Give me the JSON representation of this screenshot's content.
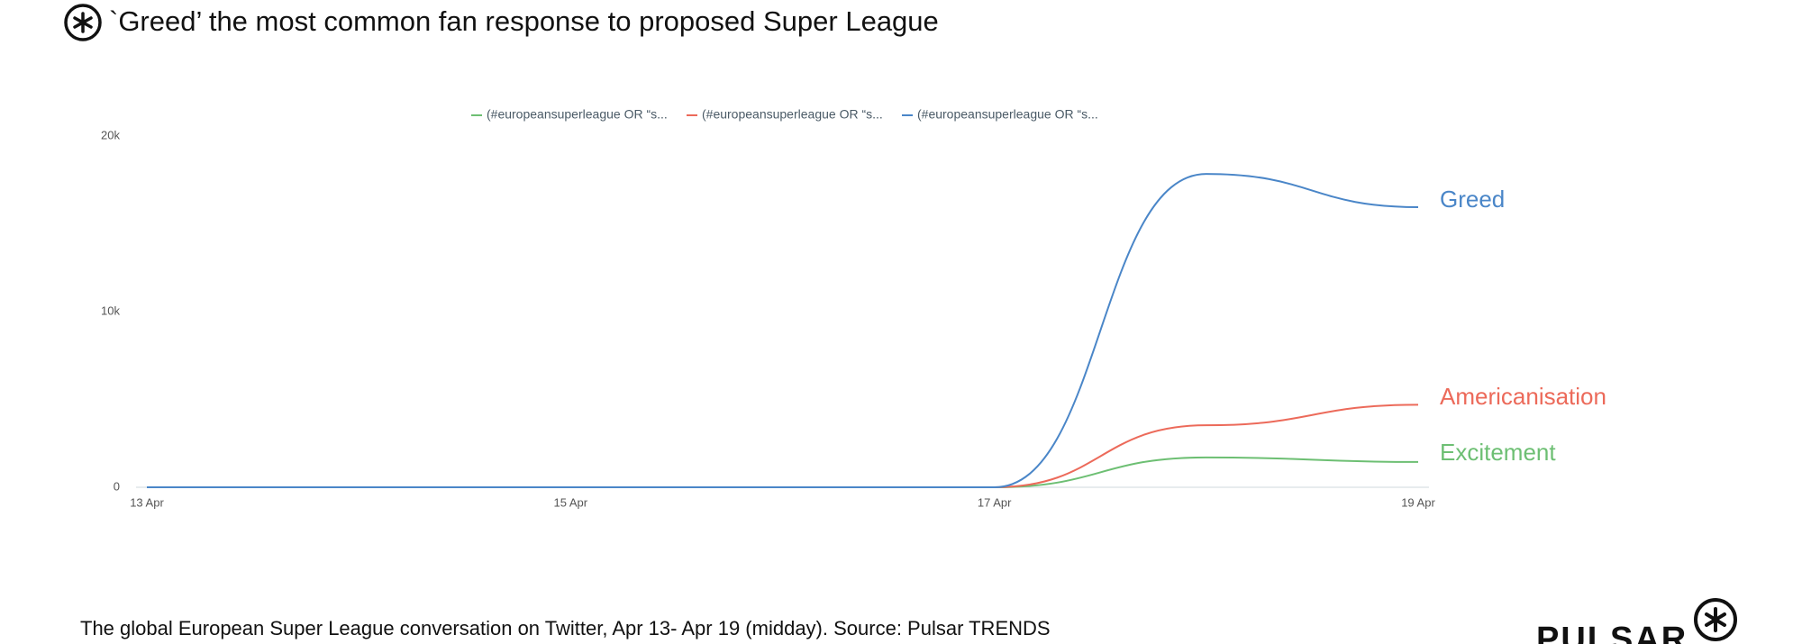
{
  "chart_data": {
    "type": "line",
    "title": "`Greed’ the most common fan response to proposed Super League",
    "caption": "The  global European Super League conversation on Twitter, Apr 13- Apr 19 (midday). Source: Pulsar TRENDS",
    "brand": "PULSAR",
    "categories": [
      "13 Apr",
      null,
      "15 Apr",
      null,
      "17 Apr",
      null,
      "19 Apr"
    ],
    "series": [
      {
        "name": "(#europeansuperleague OR “s...",
        "label": "Excitement",
        "color": "#6dbf73",
        "values": [
          0,
          0,
          0,
          0,
          0,
          1700,
          1440
        ]
      },
      {
        "name": "(#europeansuperleague OR “s...",
        "label": "Americanisation",
        "color": "#ec6a5a",
        "values": [
          0,
          0,
          0,
          0,
          0,
          3530,
          4700
        ]
      },
      {
        "name": "(#europeansuperleague OR “s...",
        "label": "Greed",
        "color": "#4a86c8",
        "values": [
          0,
          0,
          0,
          0,
          0,
          17840,
          15950
        ]
      }
    ],
    "ylim": [
      0,
      20000
    ],
    "yticks": [
      0,
      {
        "value": 10000,
        "label": "10k"
      },
      {
        "value": 20000,
        "label": "20k"
      }
    ],
    "grid": false
  }
}
